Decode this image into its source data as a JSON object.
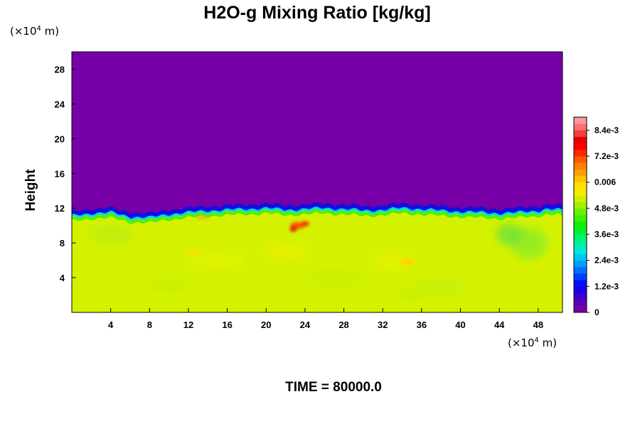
{
  "chart_data": {
    "type": "heatmap",
    "title": "H2O-g Mixing Ratio [kg/kg]",
    "xunit_prefix": "(×10",
    "xunit_exp": "4",
    "xunit_suffix": " m)",
    "yunit_prefix": "(×10",
    "yunit_exp": "4",
    "yunit_suffix": " m)",
    "ylabel": "Height",
    "xlabel": "",
    "xlim": [
      0,
      50.5
    ],
    "ylim": [
      0,
      30
    ],
    "xticks": [
      "4",
      "8",
      "12",
      "16",
      "20",
      "24",
      "28",
      "32",
      "36",
      "40",
      "44",
      "48"
    ],
    "xtick_values": [
      4,
      8,
      12,
      16,
      20,
      24,
      28,
      32,
      36,
      40,
      44,
      48
    ],
    "yticks": [
      "4",
      "8",
      "12",
      "16",
      "20",
      "24",
      "28"
    ],
    "ytick_values": [
      4,
      8,
      12,
      16,
      20,
      24,
      28
    ],
    "colorbar": {
      "min": 0,
      "max": 0.009,
      "labels": [
        "8.4e-3",
        "7.2e-3",
        "0.006",
        "4.8e-3",
        "3.6e-3",
        "2.4e-3",
        "1.2e-3",
        "0"
      ],
      "label_values": [
        0.0084,
        0.0072,
        0.006,
        0.0048,
        0.0036,
        0.0024,
        0.0012,
        0
      ],
      "colors": [
        "#7700a8",
        "#5a00b8",
        "#3a00d0",
        "#1a00e8",
        "#0010ff",
        "#0040ff",
        "#0070ff",
        "#00a0ff",
        "#00c8f0",
        "#00e8d8",
        "#00f0a8",
        "#00f070",
        "#00f038",
        "#10f000",
        "#40f000",
        "#70f000",
        "#a0f000",
        "#d0f000",
        "#f0f000",
        "#ffe000",
        "#ffc000",
        "#ffa000",
        "#ff8000",
        "#ff5800",
        "#ff2800",
        "#ff0000",
        "#e80000",
        "#f04040",
        "#f87070",
        "#ff9898"
      ]
    },
    "field": {
      "top_value": 0,
      "bottom_value": 0.0057,
      "interface_height": [
        11.4,
        11.7,
        11.8,
        11.3,
        11.2,
        11.6,
        11.8,
        12.0,
        12.1,
        12.2,
        12.3,
        12.1,
        12.2,
        12.3,
        12.2,
        12.0,
        12.1,
        12.3,
        12.2,
        12.0,
        11.9,
        11.8,
        11.7,
        11.8,
        12.0,
        12.2,
        12.1,
        12.0
      ],
      "interface_x": [
        0,
        2,
        4,
        6,
        8,
        10,
        12,
        14,
        16,
        18,
        20,
        22,
        24,
        26,
        28,
        30,
        32,
        34,
        36,
        38,
        40,
        42,
        44,
        46,
        48,
        49,
        50,
        50.5
      ]
    },
    "time_label": "TIME = 80000.0"
  }
}
